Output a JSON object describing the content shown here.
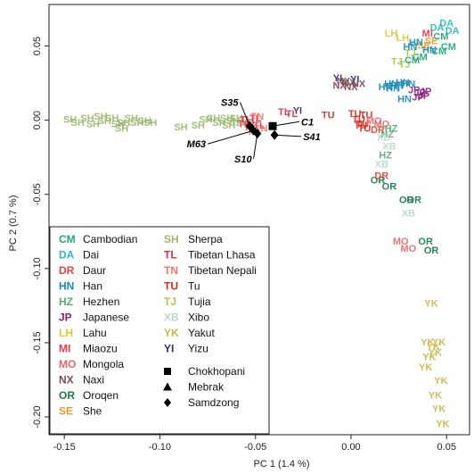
{
  "chart_data": {
    "type": "scatter",
    "xlabel": "PC 1 (1.4 %)",
    "ylabel": "PC 2 (0.7 %)",
    "xlim": [
      -0.158,
      0.062
    ],
    "ylim": [
      -0.212,
      0.078
    ],
    "xticks": [
      -0.15,
      -0.1,
      -0.05,
      0.0,
      0.05
    ],
    "xtick_labels": [
      "-0.15",
      "-0.10",
      "-0.05",
      "0.00",
      "0.05"
    ],
    "yticks": [
      0.05,
      0.0,
      -0.05,
      -0.1,
      -0.15,
      -0.2
    ],
    "ytick_labels": [
      "0.05",
      "0.00",
      "-0.05",
      "-0.10",
      "-0.15",
      "-0.20"
    ],
    "grid": false,
    "legend_position": "bottom-left",
    "populations": [
      {
        "code": "CM",
        "name": "Cambodian",
        "color": "#1fa67a"
      },
      {
        "code": "DA",
        "name": "Dai",
        "color": "#2ab7c8"
      },
      {
        "code": "DR",
        "name": "Daur",
        "color": "#e0453c"
      },
      {
        "code": "HN",
        "name": "Han",
        "color": "#1a8bb5"
      },
      {
        "code": "HZ",
        "name": "Hezhen",
        "color": "#5aa77a"
      },
      {
        "code": "JP",
        "name": "Japanese",
        "color": "#8e1f77"
      },
      {
        "code": "LH",
        "name": "Lahu",
        "color": "#d9c83a"
      },
      {
        "code": "MI",
        "name": "Miaozu",
        "color": "#e83a4a"
      },
      {
        "code": "MO",
        "name": "Mongola",
        "color": "#e46a6a"
      },
      {
        "code": "NX",
        "name": "Naxi",
        "color": "#7b4a55"
      },
      {
        "code": "OR",
        "name": "Oroqen",
        "color": "#1b7a4a"
      },
      {
        "code": "SE",
        "name": "She",
        "color": "#e89a2a"
      },
      {
        "code": "SH",
        "name": "Sherpa",
        "color": "#9ab870"
      },
      {
        "code": "TL",
        "name": "Tibetan Lhasa",
        "color": "#d9334a"
      },
      {
        "code": "TN",
        "name": "Tibetan Nepali",
        "color": "#f07a6a"
      },
      {
        "code": "TU",
        "name": "Tu",
        "color": "#d92b1f"
      },
      {
        "code": "TJ",
        "name": "Tujia",
        "color": "#a8c84a"
      },
      {
        "code": "XB",
        "name": "Xibo",
        "color": "#b8d8c8"
      },
      {
        "code": "YK",
        "name": "Yakut",
        "color": "#c8b84a"
      },
      {
        "code": "YI",
        "name": "Yizu",
        "color": "#3a2a6a"
      }
    ],
    "points": [
      {
        "pop": "SH",
        "x": -0.147,
        "y": 0.0
      },
      {
        "pop": "SH",
        "x": -0.143,
        "y": -0.002
      },
      {
        "pop": "SH",
        "x": -0.138,
        "y": 0.001
      },
      {
        "pop": "SH",
        "x": -0.135,
        "y": -0.003
      },
      {
        "pop": "SH",
        "x": -0.131,
        "y": 0.002
      },
      {
        "pop": "SH",
        "x": -0.129,
        "y": -0.001
      },
      {
        "pop": "SH",
        "x": -0.125,
        "y": 0.001
      },
      {
        "pop": "SH",
        "x": -0.122,
        "y": -0.003
      },
      {
        "pop": "SH",
        "x": -0.119,
        "y": -0.002
      },
      {
        "pop": "SH",
        "x": -0.115,
        "y": 0.001
      },
      {
        "pop": "SH",
        "x": -0.112,
        "y": -0.002
      },
      {
        "pop": "SH",
        "x": -0.108,
        "y": -0.001
      },
      {
        "pop": "SH",
        "x": -0.105,
        "y": -0.002
      },
      {
        "pop": "SH",
        "x": -0.12,
        "y": -0.006
      },
      {
        "pop": "SH",
        "x": -0.089,
        "y": -0.005
      },
      {
        "pop": "SH",
        "x": -0.08,
        "y": -0.004
      },
      {
        "pop": "SH",
        "x": -0.076,
        "y": 0.0
      },
      {
        "pop": "SH",
        "x": -0.072,
        "y": 0.001
      },
      {
        "pop": "SH",
        "x": -0.069,
        "y": -0.002
      },
      {
        "pop": "SH",
        "x": -0.065,
        "y": 0.001
      },
      {
        "pop": "SH",
        "x": -0.062,
        "y": -0.001
      },
      {
        "pop": "SH",
        "x": -0.06,
        "y": 0.001
      },
      {
        "pop": "SH",
        "x": -0.064,
        "y": -0.004
      },
      {
        "pop": "SH",
        "x": -0.057,
        "y": -0.002
      },
      {
        "pop": "TL",
        "x": -0.055,
        "y": 0.0
      },
      {
        "pop": "TL",
        "x": -0.052,
        "y": -0.002
      },
      {
        "pop": "TL",
        "x": -0.05,
        "y": 0.001
      },
      {
        "pop": "TL",
        "x": -0.053,
        "y": -0.005
      },
      {
        "pop": "TL",
        "x": -0.056,
        "y": -0.003
      },
      {
        "pop": "TL",
        "x": -0.048,
        "y": -0.004
      },
      {
        "pop": "TN",
        "x": -0.051,
        "y": -0.008
      },
      {
        "pop": "TN",
        "x": -0.047,
        "y": -0.006
      },
      {
        "pop": "TN",
        "x": -0.049,
        "y": 0.002
      },
      {
        "pop": "TL",
        "x": -0.035,
        "y": 0.005
      },
      {
        "pop": "TL",
        "x": -0.031,
        "y": 0.004
      },
      {
        "pop": "YI",
        "x": -0.028,
        "y": 0.006
      },
      {
        "pop": "TU",
        "x": -0.012,
        "y": 0.003
      },
      {
        "pop": "TU",
        "x": 0.002,
        "y": 0.004
      },
      {
        "pop": "TU",
        "x": 0.004,
        "y": 0.0
      },
      {
        "pop": "TU",
        "x": 0.006,
        "y": -0.003
      },
      {
        "pop": "TU",
        "x": 0.008,
        "y": 0.003
      },
      {
        "pop": "TU",
        "x": 0.005,
        "y": -0.004
      },
      {
        "pop": "TU",
        "x": 0.007,
        "y": -0.006
      },
      {
        "pop": "YI",
        "x": -0.007,
        "y": 0.028
      },
      {
        "pop": "NX",
        "x": -0.004,
        "y": 0.026
      },
      {
        "pop": "NX",
        "x": -0.001,
        "y": 0.025
      },
      {
        "pop": "YI",
        "x": 0.002,
        "y": 0.027
      },
      {
        "pop": "NX",
        "x": 0.004,
        "y": 0.024
      },
      {
        "pop": "NX",
        "x": -0.006,
        "y": 0.023
      },
      {
        "pop": "NX",
        "x": 0.0,
        "y": 0.022
      },
      {
        "pop": "HN",
        "x": 0.018,
        "y": 0.022
      },
      {
        "pop": "HN",
        "x": 0.021,
        "y": 0.024
      },
      {
        "pop": "HN",
        "x": 0.024,
        "y": 0.023
      },
      {
        "pop": "HN",
        "x": 0.027,
        "y": 0.025
      },
      {
        "pop": "HN",
        "x": 0.03,
        "y": 0.024
      },
      {
        "pop": "HN",
        "x": 0.022,
        "y": 0.021
      },
      {
        "pop": "HN",
        "x": 0.028,
        "y": 0.014
      },
      {
        "pop": "JP",
        "x": 0.033,
        "y": 0.02
      },
      {
        "pop": "JP",
        "x": 0.036,
        "y": 0.018
      },
      {
        "pop": "JP",
        "x": 0.038,
        "y": 0.016
      },
      {
        "pop": "JP",
        "x": 0.035,
        "y": 0.015
      },
      {
        "pop": "JP",
        "x": 0.039,
        "y": 0.019
      },
      {
        "pop": "TJ",
        "x": 0.024,
        "y": 0.039
      },
      {
        "pop": "TJ",
        "x": 0.028,
        "y": 0.037
      },
      {
        "pop": "LH",
        "x": 0.021,
        "y": 0.058
      },
      {
        "pop": "LH",
        "x": 0.027,
        "y": 0.055
      },
      {
        "pop": "CM",
        "x": 0.032,
        "y": 0.04
      },
      {
        "pop": "CM",
        "x": 0.036,
        "y": 0.042
      },
      {
        "pop": "DA",
        "x": 0.045,
        "y": 0.062
      },
      {
        "pop": "DA",
        "x": 0.05,
        "y": 0.065
      },
      {
        "pop": "DA",
        "x": 0.053,
        "y": 0.06
      },
      {
        "pop": "CM",
        "x": 0.047,
        "y": 0.056
      },
      {
        "pop": "CM",
        "x": 0.051,
        "y": 0.049
      },
      {
        "pop": "CM",
        "x": 0.046,
        "y": 0.046
      },
      {
        "pop": "SE",
        "x": 0.042,
        "y": 0.053
      },
      {
        "pop": "SE",
        "x": 0.038,
        "y": 0.05
      },
      {
        "pop": "HN",
        "x": 0.034,
        "y": 0.052
      },
      {
        "pop": "HN",
        "x": 0.041,
        "y": 0.047
      },
      {
        "pop": "MI",
        "x": 0.04,
        "y": 0.058
      },
      {
        "pop": "TJ",
        "x": 0.031,
        "y": 0.045
      },
      {
        "pop": "HN",
        "x": 0.031,
        "y": 0.049
      },
      {
        "pop": "MO",
        "x": 0.012,
        "y": -0.001
      },
      {
        "pop": "MO",
        "x": 0.016,
        "y": -0.003
      },
      {
        "pop": "DR",
        "x": 0.014,
        "y": -0.007
      },
      {
        "pop": "HZ",
        "x": 0.019,
        "y": -0.01
      },
      {
        "pop": "HZ",
        "x": 0.021,
        "y": -0.006
      },
      {
        "pop": "XB",
        "x": 0.017,
        "y": -0.012
      },
      {
        "pop": "XB",
        "x": 0.02,
        "y": -0.018
      },
      {
        "pop": "HZ",
        "x": 0.018,
        "y": -0.024
      },
      {
        "pop": "XB",
        "x": 0.016,
        "y": -0.03
      },
      {
        "pop": "OR",
        "x": 0.014,
        "y": -0.041
      },
      {
        "pop": "DR",
        "x": 0.016,
        "y": -0.038
      },
      {
        "pop": "OR",
        "x": 0.02,
        "y": -0.045
      },
      {
        "pop": "OR",
        "x": 0.033,
        "y": -0.054
      },
      {
        "pop": "OR",
        "x": 0.029,
        "y": -0.054
      },
      {
        "pop": "XB",
        "x": 0.03,
        "y": -0.063
      },
      {
        "pop": "MO",
        "x": 0.026,
        "y": -0.082
      },
      {
        "pop": "MO",
        "x": 0.03,
        "y": -0.087
      },
      {
        "pop": "OR",
        "x": 0.039,
        "y": -0.082
      },
      {
        "pop": "OR",
        "x": 0.042,
        "y": -0.088
      },
      {
        "pop": "YK",
        "x": 0.042,
        "y": -0.124
      },
      {
        "pop": "YK",
        "x": 0.04,
        "y": -0.15
      },
      {
        "pop": "YK",
        "x": 0.043,
        "y": -0.153
      },
      {
        "pop": "YK",
        "x": 0.046,
        "y": -0.15
      },
      {
        "pop": "YK",
        "x": 0.044,
        "y": -0.157
      },
      {
        "pop": "YK",
        "x": 0.041,
        "y": -0.16
      },
      {
        "pop": "YK",
        "x": 0.039,
        "y": -0.167
      },
      {
        "pop": "YK",
        "x": 0.047,
        "y": -0.176
      },
      {
        "pop": "YK",
        "x": 0.044,
        "y": -0.186
      },
      {
        "pop": "YK",
        "x": 0.046,
        "y": -0.195
      },
      {
        "pop": "YK",
        "x": 0.048,
        "y": -0.205
      }
    ],
    "shape_legend": [
      {
        "shape": "square",
        "name": "Chokhopani"
      },
      {
        "shape": "triangle",
        "name": "Mebrak"
      },
      {
        "shape": "diamond",
        "name": "Samdzong"
      }
    ],
    "samples": [
      {
        "label": "S35",
        "shape": "diamond",
        "x": -0.053,
        "y": -0.004,
        "lx": -0.058,
        "ly": 0.012
      },
      {
        "label": "C1",
        "shape": "square",
        "x": -0.041,
        "y": -0.004,
        "lx": -0.027,
        "ly": -0.001
      },
      {
        "label": "S41",
        "shape": "diamond",
        "x": -0.04,
        "y": -0.01,
        "lx": -0.026,
        "ly": -0.011
      },
      {
        "label": "M63",
        "shape": "diamond",
        "x": -0.051,
        "y": -0.007,
        "lx": -0.075,
        "ly": -0.016
      },
      {
        "label": "S10",
        "shape": "diamond",
        "x": -0.049,
        "y": -0.009,
        "lx": -0.051,
        "ly": -0.026
      }
    ]
  }
}
